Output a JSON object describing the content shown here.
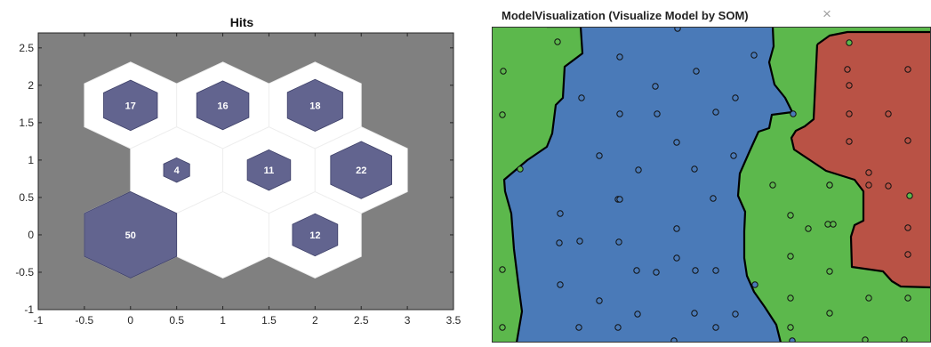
{
  "chart_data": [
    {
      "type": "other",
      "title": "Hits",
      "xlim": [
        -1,
        3.5
      ],
      "ylim": [
        -1,
        2.7
      ],
      "xticks": [
        -1,
        -0.5,
        0,
        0.5,
        1,
        1.5,
        2,
        2.5,
        3,
        3.5
      ],
      "yticks": [
        -1,
        -0.5,
        0,
        0.5,
        1,
        1.5,
        2,
        2.5
      ],
      "xtick_labels": [
        "-1",
        "-0.5",
        "0",
        "0.5",
        "1",
        "1.5",
        "2",
        "2.5",
        "3",
        "3.5"
      ],
      "ytick_labels": [
        "-1",
        "-0.5",
        "0",
        "0.5",
        "1",
        "1.5",
        "2",
        "2.5"
      ],
      "colors": {
        "background": "#808080",
        "cell": "#ffffff",
        "hit": "#62648f"
      },
      "cells": [
        {
          "x": 0,
          "y": 0,
          "hits": 50,
          "label": "50"
        },
        {
          "x": 1,
          "y": 0,
          "hits": 0,
          "label": ""
        },
        {
          "x": 2,
          "y": 0,
          "hits": 12,
          "label": "12"
        },
        {
          "x": 0.5,
          "y": 0.866,
          "hits": 4,
          "label": "4"
        },
        {
          "x": 1.5,
          "y": 0.866,
          "hits": 11,
          "label": "11"
        },
        {
          "x": 2.5,
          "y": 0.866,
          "hits": 22,
          "label": "22"
        },
        {
          "x": 0,
          "y": 1.732,
          "hits": 17,
          "label": "17"
        },
        {
          "x": 1,
          "y": 1.732,
          "hits": 16,
          "label": "16"
        },
        {
          "x": 2,
          "y": 1.732,
          "hits": 18,
          "label": "18"
        }
      ],
      "max_hits": 50
    },
    {
      "type": "scatter",
      "title": "ModelVisualization (Visualize Model by SOM)",
      "close_label": "×",
      "xlim": [
        0,
        494
      ],
      "ylim": [
        0,
        355
      ],
      "colors": {
        "green": "#5cb84c",
        "blue": "#4a7ab8",
        "red": "#b95245",
        "boundary": "#000000"
      },
      "regions": [
        {
          "name": "green",
          "color": "#5cb84c",
          "polygon": [
            [
              0,
              0
            ],
            [
              494,
              0
            ],
            [
              494,
              355
            ],
            [
              0,
              355
            ]
          ]
        },
        {
          "name": "blue",
          "color": "#4a7ab8",
          "polygon": [
            [
              62,
              0
            ],
            [
              100,
              0
            ],
            [
              102,
              30
            ],
            [
              82,
              45
            ],
            [
              80,
              80
            ],
            [
              72,
              88
            ],
            [
              68,
              120
            ],
            [
              62,
              135
            ],
            [
              40,
              150
            ],
            [
              14,
              172
            ],
            [
              15,
              185
            ],
            [
              22,
              210
            ],
            [
              25,
              250
            ],
            [
              30,
              290
            ],
            [
              34,
              320
            ],
            [
              28,
              355
            ],
            [
              325,
              355
            ],
            [
              320,
              335
            ],
            [
              307,
              315
            ],
            [
              295,
              298
            ],
            [
              287,
              280
            ],
            [
              284,
              260
            ],
            [
              284,
              230
            ],
            [
              285,
              208
            ],
            [
              277,
              190
            ],
            [
              279,
              165
            ],
            [
              290,
              140
            ],
            [
              300,
              118
            ],
            [
              312,
              114
            ],
            [
              315,
              99
            ],
            [
              338,
              96
            ],
            [
              330,
              80
            ],
            [
              318,
              65
            ],
            [
              312,
              40
            ],
            [
              317,
              22
            ],
            [
              316,
              0
            ],
            [
              180,
              0
            ]
          ]
        },
        {
          "name": "red",
          "color": "#b95245",
          "polygon": [
            [
              366,
              20
            ],
            [
              380,
              10
            ],
            [
              400,
              6
            ],
            [
              494,
              6
            ],
            [
              494,
              293
            ],
            [
              460,
              292
            ],
            [
              450,
              286
            ],
            [
              440,
              275
            ],
            [
              405,
              270
            ],
            [
              404,
              236
            ],
            [
              408,
              223
            ],
            [
              418,
              218
            ],
            [
              418,
              185
            ],
            [
              408,
              172
            ],
            [
              376,
              162
            ],
            [
              340,
              138
            ],
            [
              337,
              125
            ],
            [
              342,
              117
            ],
            [
              352,
              112
            ],
            [
              362,
              104
            ]
          ]
        }
      ],
      "boundary_segments": [
        [
          [
            62,
            0
          ],
          [
            100,
            0
          ],
          [
            102,
            30
          ],
          [
            82,
            45
          ],
          [
            80,
            80
          ],
          [
            72,
            88
          ],
          [
            68,
            120
          ],
          [
            62,
            135
          ],
          [
            40,
            150
          ],
          [
            14,
            172
          ],
          [
            15,
            185
          ],
          [
            22,
            210
          ],
          [
            25,
            250
          ],
          [
            30,
            290
          ],
          [
            34,
            320
          ],
          [
            28,
            355
          ]
        ],
        [
          [
            316,
            0
          ],
          [
            317,
            22
          ],
          [
            312,
            40
          ],
          [
            318,
            65
          ],
          [
            330,
            80
          ],
          [
            338,
            96
          ],
          [
            315,
            99
          ],
          [
            312,
            114
          ],
          [
            300,
            118
          ],
          [
            290,
            140
          ],
          [
            279,
            165
          ],
          [
            277,
            190
          ],
          [
            285,
            208
          ],
          [
            284,
            230
          ],
          [
            284,
            260
          ],
          [
            287,
            280
          ],
          [
            295,
            298
          ],
          [
            307,
            315
          ],
          [
            320,
            335
          ],
          [
            325,
            355
          ]
        ],
        [
          [
            366,
            20
          ],
          [
            380,
            10
          ],
          [
            400,
            6
          ],
          [
            494,
            6
          ]
        ],
        [
          [
            366,
            20
          ],
          [
            362,
            104
          ],
          [
            352,
            112
          ],
          [
            342,
            117
          ],
          [
            337,
            125
          ],
          [
            340,
            138
          ],
          [
            376,
            162
          ],
          [
            408,
            172
          ],
          [
            418,
            185
          ],
          [
            418,
            218
          ],
          [
            408,
            223
          ],
          [
            404,
            236
          ],
          [
            405,
            270
          ],
          [
            440,
            275
          ],
          [
            450,
            286
          ],
          [
            460,
            292
          ],
          [
            494,
            293
          ]
        ]
      ],
      "points": [
        {
          "x": 74,
          "y": 17,
          "c": "green"
        },
        {
          "x": 13,
          "y": 50,
          "c": "green"
        },
        {
          "x": 12,
          "y": 99,
          "c": "green"
        },
        {
          "x": 32,
          "y": 160,
          "c": "green"
        },
        {
          "x": 12,
          "y": 273,
          "c": "green"
        },
        {
          "x": 12,
          "y": 338,
          "c": "green"
        },
        {
          "x": 316,
          "y": 178,
          "c": "green"
        },
        {
          "x": 336,
          "y": 212,
          "c": "green"
        },
        {
          "x": 356,
          "y": 227,
          "c": "green"
        },
        {
          "x": 380,
          "y": 178,
          "c": "green"
        },
        {
          "x": 378,
          "y": 222,
          "c": "green"
        },
        {
          "x": 384,
          "y": 222,
          "c": "green"
        },
        {
          "x": 336,
          "y": 258,
          "c": "green"
        },
        {
          "x": 380,
          "y": 275,
          "c": "green"
        },
        {
          "x": 336,
          "y": 305,
          "c": "green"
        },
        {
          "x": 380,
          "y": 322,
          "c": "green"
        },
        {
          "x": 336,
          "y": 338,
          "c": "green"
        },
        {
          "x": 424,
          "y": 305,
          "c": "green"
        },
        {
          "x": 420,
          "y": 352,
          "c": "green"
        },
        {
          "x": 464,
          "y": 352,
          "c": "green"
        },
        {
          "x": 468,
          "y": 305,
          "c": "green"
        },
        {
          "x": 402,
          "y": 18,
          "c": "green"
        },
        {
          "x": 470,
          "y": 190,
          "c": "green"
        },
        {
          "x": 380,
          "y": 178,
          "c": "green"
        },
        {
          "x": 209,
          "y": 2,
          "c": "blue"
        },
        {
          "x": 144,
          "y": 34,
          "c": "blue"
        },
        {
          "x": 230,
          "y": 50,
          "c": "blue"
        },
        {
          "x": 295,
          "y": 32,
          "c": "blue"
        },
        {
          "x": 184,
          "y": 67,
          "c": "blue"
        },
        {
          "x": 101,
          "y": 80,
          "c": "blue"
        },
        {
          "x": 274,
          "y": 80,
          "c": "blue"
        },
        {
          "x": 144,
          "y": 98,
          "c": "blue"
        },
        {
          "x": 186,
          "y": 98,
          "c": "blue"
        },
        {
          "x": 252,
          "y": 96,
          "c": "blue"
        },
        {
          "x": 339,
          "y": 98,
          "c": "blue"
        },
        {
          "x": 208,
          "y": 130,
          "c": "blue"
        },
        {
          "x": 121,
          "y": 145,
          "c": "blue"
        },
        {
          "x": 165,
          "y": 161,
          "c": "blue"
        },
        {
          "x": 228,
          "y": 160,
          "c": "blue"
        },
        {
          "x": 272,
          "y": 145,
          "c": "blue"
        },
        {
          "x": 142,
          "y": 194,
          "c": "blue"
        },
        {
          "x": 144,
          "y": 194,
          "c": "blue"
        },
        {
          "x": 249,
          "y": 193,
          "c": "blue"
        },
        {
          "x": 77,
          "y": 210,
          "c": "blue"
        },
        {
          "x": 208,
          "y": 227,
          "c": "blue"
        },
        {
          "x": 76,
          "y": 243,
          "c": "blue"
        },
        {
          "x": 99,
          "y": 241,
          "c": "blue"
        },
        {
          "x": 143,
          "y": 242,
          "c": "blue"
        },
        {
          "x": 208,
          "y": 260,
          "c": "blue"
        },
        {
          "x": 163,
          "y": 274,
          "c": "blue"
        },
        {
          "x": 185,
          "y": 276,
          "c": "blue"
        },
        {
          "x": 229,
          "y": 274,
          "c": "blue"
        },
        {
          "x": 252,
          "y": 274,
          "c": "blue"
        },
        {
          "x": 77,
          "y": 290,
          "c": "blue"
        },
        {
          "x": 296,
          "y": 290,
          "c": "blue"
        },
        {
          "x": 121,
          "y": 308,
          "c": "blue"
        },
        {
          "x": 164,
          "y": 323,
          "c": "blue"
        },
        {
          "x": 228,
          "y": 322,
          "c": "blue"
        },
        {
          "x": 274,
          "y": 323,
          "c": "blue"
        },
        {
          "x": 98,
          "y": 338,
          "c": "blue"
        },
        {
          "x": 142,
          "y": 338,
          "c": "blue"
        },
        {
          "x": 252,
          "y": 338,
          "c": "blue"
        },
        {
          "x": 205,
          "y": 353,
          "c": "blue"
        },
        {
          "x": 338,
          "y": 353,
          "c": "blue"
        },
        {
          "x": 400,
          "y": 48,
          "c": "red"
        },
        {
          "x": 468,
          "y": 48,
          "c": "red"
        },
        {
          "x": 402,
          "y": 66,
          "c": "red"
        },
        {
          "x": 402,
          "y": 98,
          "c": "red"
        },
        {
          "x": 446,
          "y": 98,
          "c": "red"
        },
        {
          "x": 402,
          "y": 129,
          "c": "red"
        },
        {
          "x": 468,
          "y": 128,
          "c": "red"
        },
        {
          "x": 424,
          "y": 164,
          "c": "red"
        },
        {
          "x": 446,
          "y": 179,
          "c": "red"
        },
        {
          "x": 468,
          "y": 226,
          "c": "red"
        },
        {
          "x": 468,
          "y": 256,
          "c": "red"
        },
        {
          "x": 424,
          "y": 178,
          "c": "red"
        }
      ]
    }
  ]
}
